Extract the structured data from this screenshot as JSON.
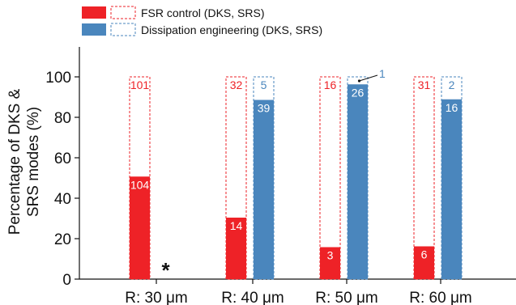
{
  "chart_data": {
    "type": "bar",
    "stacked": true,
    "categories": [
      "R: 30 μm",
      "R: 40 μm",
      "R: 50 μm",
      "R: 60 μm"
    ],
    "ylabel_lines": [
      "Percentage of DKS &",
      "SRS modes (%)"
    ],
    "xlabel": "",
    "ylim": [
      0,
      100
    ],
    "yticks": [
      0,
      20,
      40,
      60,
      80,
      100
    ],
    "grid": false,
    "legend_position": "top-left",
    "legend": {
      "fsr_label": "FSR control (DKS, SRS)",
      "diss_label": "Dissipation engineering (DKS, SRS)"
    },
    "series": [
      {
        "name": "FSR control (DKS, SRS)",
        "color": "#ee2227",
        "dks_percent": [
          50.7,
          30.4,
          15.8,
          16.2
        ],
        "dks_count": [
          "104",
          "14",
          "3",
          "6"
        ],
        "srs_count": [
          "101",
          "32",
          "16",
          "31"
        ]
      },
      {
        "name": "Dissipation engineering (DKS, SRS)",
        "color": "#4a86bd",
        "dks_percent": [
          null,
          88.6,
          96.3,
          88.9
        ],
        "dks_count": [
          "",
          "39",
          "26",
          "16"
        ],
        "srs_count": [
          "",
          "5",
          "1",
          "2"
        ]
      }
    ],
    "annotations": {
      "asterisk": "*",
      "asterisk_category": "R: 30 μm"
    }
  }
}
